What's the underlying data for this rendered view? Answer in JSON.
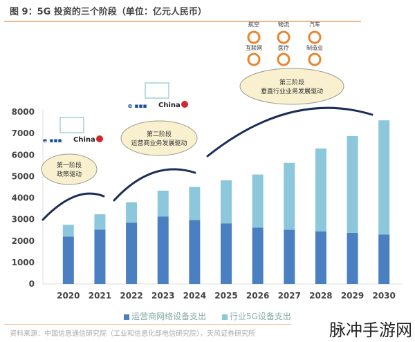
{
  "chart_data": {
    "type": "bar",
    "stacked": true,
    "title": "图 9：5G 投资的三个阶段（单位：亿元人民币）",
    "categories": [
      "2020",
      "2021",
      "2022",
      "2023",
      "2024",
      "2025",
      "2026",
      "2027",
      "2028",
      "2029",
      "2030"
    ],
    "series": [
      {
        "name": "运营商网络设备支出",
        "color": "#4a7fc1",
        "values": [
          2200,
          2530,
          2850,
          3140,
          2970,
          2820,
          2620,
          2520,
          2440,
          2380,
          2300
        ]
      },
      {
        "name": "行业5G设备支出",
        "color": "#8cc7dc",
        "values": [
          550,
          710,
          950,
          1200,
          1540,
          2000,
          2470,
          3110,
          3860,
          4500,
          5310
        ]
      }
    ],
    "ylim": [
      0,
      8000
    ],
    "yticks": [
      "0",
      "1000",
      "2000",
      "3000",
      "4000",
      "5000",
      "6000",
      "7000",
      "8000"
    ],
    "grid": false,
    "legend": "bottom",
    "annotations": [
      {
        "line1": "第一阶段",
        "line2": "政策驱动"
      },
      {
        "line1": "第二阶段",
        "line2": "运营商业务发展驱动"
      },
      {
        "line1": "第三阶段",
        "line2": "垂直行业业务发展驱动"
      }
    ],
    "industries": [
      "航空",
      "物流",
      "汽车",
      "互联网",
      "医疗",
      "制造业"
    ],
    "industry_icons": [
      "airplane-icon",
      "truck-icon",
      "car-wheel-icon",
      "globe-icon",
      "medical-kit-icon",
      "tools-icon"
    ],
    "accent_color": "#e8862f"
  },
  "source": "资料来源：中国信息通信研究院（工业和信息化部电信研究院），天风证券研究所",
  "watermark": "脉冲手游网"
}
